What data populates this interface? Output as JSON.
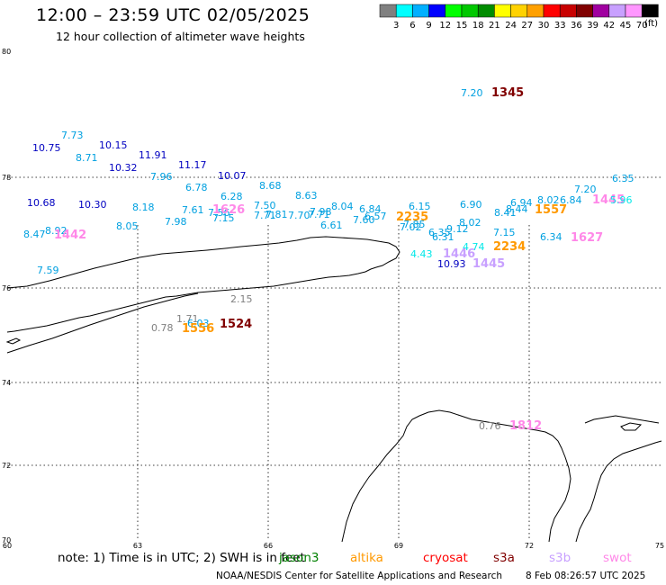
{
  "header": {
    "title": "12:00 – 23:59 UTC 02/05/2025",
    "subtitle": "12 hour collection of altimeter wave heights"
  },
  "legend": {
    "unit": "(ft)",
    "bins": [
      {
        "label": "3",
        "color": "#808080"
      },
      {
        "label": "6",
        "color": "#00ffff"
      },
      {
        "label": "9",
        "color": "#00b0ff"
      },
      {
        "label": "12",
        "color": "#0000ff"
      },
      {
        "label": "15",
        "color": "#00ff00"
      },
      {
        "label": "18",
        "color": "#00c800"
      },
      {
        "label": "21",
        "color": "#008c00"
      },
      {
        "label": "24",
        "color": "#ffff00"
      },
      {
        "label": "27",
        "color": "#ffd200"
      },
      {
        "label": "30",
        "color": "#ffa000"
      },
      {
        "label": "33",
        "color": "#ff0000"
      },
      {
        "label": "36",
        "color": "#c80000"
      },
      {
        "label": "39",
        "color": "#800000"
      },
      {
        "label": "42",
        "color": "#a000a0"
      },
      {
        "label": "45",
        "color": "#c8a0ff"
      },
      {
        "label": "70",
        "color": "#ff96ff"
      },
      {
        "label": "",
        "color": "#000000"
      }
    ]
  },
  "axes": {
    "lat_labels": [
      "80",
      "78",
      "76",
      "74",
      "72",
      "70"
    ],
    "lon_labels": [
      "60",
      "63",
      "66",
      "69",
      "72",
      "75"
    ]
  },
  "wave_heights": [
    {
      "text": "7.20",
      "color": "#00a0e0"
    },
    {
      "text": "1345",
      "color": "#800000"
    },
    {
      "text": "7.73",
      "color": "#00a0e0"
    },
    {
      "text": "10.75",
      "color": "#0000c0"
    },
    {
      "text": "10.15",
      "color": "#0000c0"
    },
    {
      "text": "8.71",
      "color": "#00a0e0"
    },
    {
      "text": "11.91",
      "color": "#0000c0"
    },
    {
      "text": "10.32",
      "color": "#0000c0"
    },
    {
      "text": "11.17",
      "color": "#0000c0"
    },
    {
      "text": "7.96",
      "color": "#00a0e0"
    },
    {
      "text": "10.07",
      "color": "#0000c0"
    },
    {
      "text": "6.78",
      "color": "#00a0e0"
    },
    {
      "text": "8.68",
      "color": "#00a0e0"
    },
    {
      "text": "6.28",
      "color": "#00a0e0"
    },
    {
      "text": "8.63",
      "color": "#00a0e0"
    },
    {
      "text": "6.35",
      "color": "#00a0e0"
    },
    {
      "text": "7.20",
      "color": "#00a0e0"
    },
    {
      "text": "10.68",
      "color": "#0000c0"
    },
    {
      "text": "10.30",
      "color": "#0000c0"
    },
    {
      "text": "8.18",
      "color": "#00a0e0"
    },
    {
      "text": "7.61",
      "color": "#00a0e0"
    },
    {
      "text": "7.56",
      "color": "#00a0e0"
    },
    {
      "text": "1626",
      "color": "#ff88e8"
    },
    {
      "text": "7.50",
      "color": "#00a0e0"
    },
    {
      "text": "8.04",
      "color": "#00a0e0"
    },
    {
      "text": "6.84",
      "color": "#00a0e0"
    },
    {
      "text": "6.15",
      "color": "#00a0e0"
    },
    {
      "text": "6.90",
      "color": "#00a0e0"
    },
    {
      "text": "6.94",
      "color": "#00a0e0"
    },
    {
      "text": "8.02",
      "color": "#00a0e0"
    },
    {
      "text": "6.84",
      "color": "#00a0e0"
    },
    {
      "text": "1445",
      "color": "#ff88e8"
    },
    {
      "text": "5.96",
      "color": "#00e8e8"
    },
    {
      "text": "7.71",
      "color": "#00a0e0"
    },
    {
      "text": "7.81",
      "color": "#00a0e0"
    },
    {
      "text": "7.70",
      "color": "#00a0e0"
    },
    {
      "text": "7.71",
      "color": "#00a0e0"
    },
    {
      "text": "7.98",
      "color": "#00a0e0"
    },
    {
      "text": "7.15",
      "color": "#00a0e0"
    },
    {
      "text": "7.60",
      "color": "#00a0e0"
    },
    {
      "text": "6.57",
      "color": "#00a0e0"
    },
    {
      "text": "2235",
      "color": "#ff9900"
    },
    {
      "text": "8.41",
      "color": "#00a0e0"
    },
    {
      "text": "8.44",
      "color": "#00a0e0"
    },
    {
      "text": "1557",
      "color": "#ff9900"
    },
    {
      "text": "8.92",
      "color": "#00a0e0"
    },
    {
      "text": "7.98",
      "color": "#00a0e0"
    },
    {
      "text": "8.05",
      "color": "#00a0e0"
    },
    {
      "text": "6.61",
      "color": "#00a0e0"
    },
    {
      "text": "7.85",
      "color": "#00a0e0"
    },
    {
      "text": "8.02",
      "color": "#00a0e0"
    },
    {
      "text": "7.02",
      "color": "#00a0e0"
    },
    {
      "text": "6.35",
      "color": "#00a0e0"
    },
    {
      "text": "9.12",
      "color": "#00a0e0"
    },
    {
      "text": "6.31",
      "color": "#00a0e0"
    },
    {
      "text": "8.47",
      "color": "#00a0e0"
    },
    {
      "text": "1442",
      "color": "#ff88e8"
    },
    {
      "text": "7.15",
      "color": "#00a0e0"
    },
    {
      "text": "6.34",
      "color": "#00a0e0"
    },
    {
      "text": "1627",
      "color": "#ff88e8"
    },
    {
      "text": "4.74",
      "color": "#00e8e8"
    },
    {
      "text": "2234",
      "color": "#ff9900"
    },
    {
      "text": "4.43",
      "color": "#00e8e8"
    },
    {
      "text": "1446",
      "color": "#c8a0ff"
    },
    {
      "text": "10.93",
      "color": "#0000c0"
    },
    {
      "text": "1445",
      "color": "#c8a0ff"
    },
    {
      "text": "7.59",
      "color": "#00a0e0"
    },
    {
      "text": "2.15",
      "color": "#808080"
    },
    {
      "text": "1.71",
      "color": "#808080"
    },
    {
      "text": "0.78",
      "color": "#808080"
    },
    {
      "text": "6.03",
      "color": "#00a0e0"
    },
    {
      "text": "1556",
      "color": "#ff9900"
    },
    {
      "text": "1524",
      "color": "#800000"
    },
    {
      "text": "0.76",
      "color": "#808080"
    },
    {
      "text": "1812",
      "color": "#ff88e8"
    }
  ],
  "footer": {
    "note": "note:  1) Time is in UTC;  2) SWH is in feet",
    "satellites": [
      {
        "label": "jason3",
        "color": "#008000"
      },
      {
        "label": "altika",
        "color": "#ff9900"
      },
      {
        "label": "cryosat",
        "color": "#ff0000"
      },
      {
        "label": "s3a",
        "color": "#800000"
      },
      {
        "label": "s3b",
        "color": "#c8a0ff"
      },
      {
        "label": "swot",
        "color": "#ff88e8"
      }
    ],
    "organization": "NOAA/NESDIS Center for Satellite Applications and Research",
    "generated": "8 Feb 08:26:57 UTC 2025"
  }
}
